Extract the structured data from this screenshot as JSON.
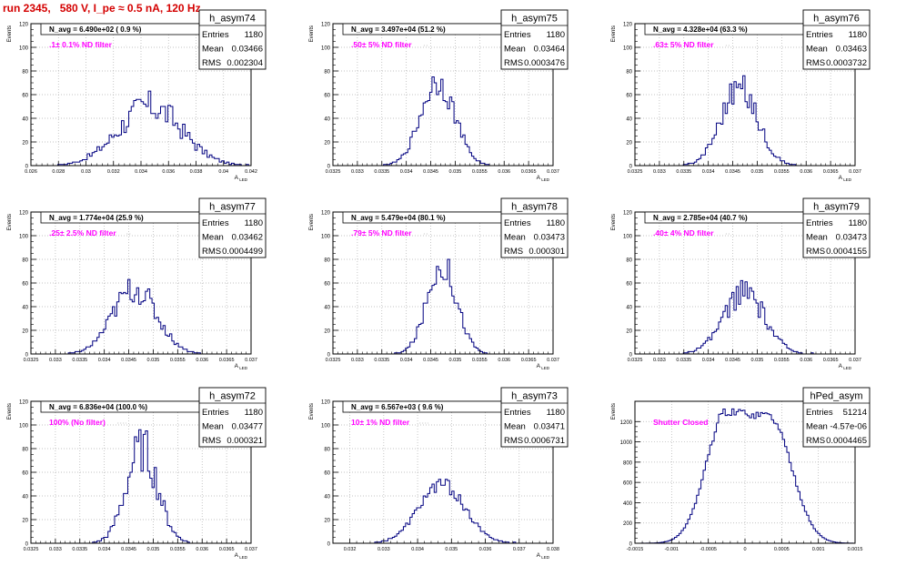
{
  "header": {
    "title": "run 2345,   580 V, I_pe ≈ 0.5 nA, 120 Hz"
  },
  "colors": {
    "title": "#d40000",
    "histogram": "#000080",
    "annotation": "#ff00ff",
    "grid": "#b0b0b0"
  },
  "chart_data": [
    {
      "type": "histogram",
      "name": "h_asym74",
      "navg": "N_avg = 6.490e+02 ( 0.9 %)",
      "annotation": ".1± 0.1% ND filter",
      "stats": {
        "entries": "1180",
        "mean": "0.03466",
        "rms": "0.002304"
      },
      "xlim": [
        0.026,
        0.042
      ],
      "ylim": [
        0,
        120
      ],
      "xticks": [
        "0.026",
        "0.028",
        "0.03",
        "0.032",
        "0.034",
        "0.036",
        "0.038",
        "0.04",
        "0.042"
      ],
      "yticks": [
        "0",
        "20",
        "40",
        "60",
        "80",
        "100",
        "120"
      ],
      "ylabel": "Events",
      "xlabel": "A",
      "peak": 50,
      "mean_value": 0.03466,
      "sigma": 0.0023,
      "nbins": 90,
      "noise": 0.28
    },
    {
      "type": "histogram",
      "name": "h_asym75",
      "navg": "N_avg = 3.497e+04 (51.2 %)",
      "annotation": ".50± 5% ND filter",
      "stats": {
        "entries": "1180",
        "mean": "0.03464",
        "rms": "0.0003476"
      },
      "xlim": [
        0.0325,
        0.037
      ],
      "ylim": [
        0,
        120
      ],
      "xticks": [
        "0.0325",
        "0.033",
        "0.0335",
        "0.034",
        "0.0345",
        "0.035",
        "0.0355",
        "0.036",
        "0.0365",
        "0.037"
      ],
      "yticks": [
        "0",
        "20",
        "40",
        "60",
        "80",
        "100",
        "120"
      ],
      "ylabel": "Events",
      "xlabel": "A",
      "peak": 72,
      "mean_value": 0.03464,
      "sigma": 0.000348,
      "nbins": 100,
      "noise": 0.18
    },
    {
      "type": "histogram",
      "name": "h_asym76",
      "navg": "N_avg = 4.328e+04 (63.3 %)",
      "annotation": ".63± 5% ND filter",
      "stats": {
        "entries": "1180",
        "mean": "0.03463",
        "rms": "0.0003732"
      },
      "xlim": [
        0.0325,
        0.037
      ],
      "ylim": [
        0,
        120
      ],
      "xticks": [
        "0.0325",
        "0.033",
        "0.0335",
        "0.034",
        "0.0345",
        "0.035",
        "0.0355",
        "0.036",
        "0.0365",
        "0.037"
      ],
      "yticks": [
        "0",
        "20",
        "40",
        "60",
        "80",
        "100",
        "120"
      ],
      "ylabel": "Events",
      "xlabel": "A",
      "peak": 66,
      "mean_value": 0.03463,
      "sigma": 0.000373,
      "nbins": 100,
      "noise": 0.2
    },
    {
      "type": "histogram",
      "name": "h_asym77",
      "navg": "N_avg = 1.774e+04 (25.9 %)",
      "annotation": ".25± 2.5% ND filter",
      "stats": {
        "entries": "1180",
        "mean": "0.03462",
        "rms": "0.0004499"
      },
      "xlim": [
        0.0325,
        0.037
      ],
      "ylim": [
        0,
        120
      ],
      "xticks": [
        "0.0325",
        "0.033",
        "0.0335",
        "0.034",
        "0.0345",
        "0.035",
        "0.0355",
        "0.036",
        "0.0365",
        "0.037"
      ],
      "yticks": [
        "0",
        "20",
        "40",
        "60",
        "80",
        "100",
        "120"
      ],
      "ylabel": "Events",
      "xlabel": "A",
      "peak": 55,
      "mean_value": 0.03462,
      "sigma": 0.00045,
      "nbins": 100,
      "noise": 0.22
    },
    {
      "type": "histogram",
      "name": "h_asym78",
      "navg": "N_avg = 5.479e+04 (80.1 %)",
      "annotation": ".79± 5% ND filter",
      "stats": {
        "entries": "1180",
        "mean": "0.03473",
        "rms": "0.000301"
      },
      "xlim": [
        0.0325,
        0.037
      ],
      "ylim": [
        0,
        120
      ],
      "xticks": [
        "0.0325",
        "0.033",
        "0.0335",
        "0.034",
        "0.0345",
        "0.035",
        "0.0355",
        "0.036",
        "0.0365",
        "0.037"
      ],
      "yticks": [
        "0",
        "20",
        "40",
        "60",
        "80",
        "100",
        "120"
      ],
      "ylabel": "Events",
      "xlabel": "A",
      "peak": 76,
      "mean_value": 0.03473,
      "sigma": 0.000301,
      "nbins": 100,
      "noise": 0.18
    },
    {
      "type": "histogram",
      "name": "h_asym79",
      "navg": "N_avg = 2.785e+04 (40.7 %)",
      "annotation": ".40± 4% ND filter",
      "stats": {
        "entries": "1180",
        "mean": "0.03473",
        "rms": "0.0004155"
      },
      "xlim": [
        0.0325,
        0.037
      ],
      "ylim": [
        0,
        120
      ],
      "xticks": [
        "0.0325",
        "0.033",
        "0.0335",
        "0.034",
        "0.0345",
        "0.035",
        "0.0355",
        "0.036",
        "0.0365",
        "0.037"
      ],
      "yticks": [
        "0",
        "20",
        "40",
        "60",
        "80",
        "100",
        "120"
      ],
      "ylabel": "Events",
      "xlabel": "A",
      "peak": 52,
      "mean_value": 0.03473,
      "sigma": 0.000416,
      "nbins": 100,
      "noise": 0.22
    },
    {
      "type": "histogram",
      "name": "h_asym72",
      "navg": "N_avg = 6.836e+04 (100.0 %)",
      "annotation": "100% (No filter)",
      "stats": {
        "entries": "1180",
        "mean": "0.03477",
        "rms": "0.000321"
      },
      "xlim": [
        0.0325,
        0.037
      ],
      "ylim": [
        0,
        120
      ],
      "xticks": [
        "0.0325",
        "0.033",
        "0.0335",
        "0.034",
        "0.0345",
        "0.035",
        "0.0355",
        "0.036",
        "0.0365",
        "0.037"
      ],
      "yticks": [
        "0",
        "20",
        "40",
        "60",
        "80",
        "100",
        "120"
      ],
      "ylabel": "Events",
      "xlabel": "A",
      "peak": 80,
      "mean_value": 0.03477,
      "sigma": 0.000321,
      "nbins": 100,
      "noise": 0.25
    },
    {
      "type": "histogram",
      "name": "h_asym73",
      "navg": "N_avg = 6.567e+03 ( 9.6 %)",
      "annotation": "10± 1% ND filter",
      "stats": {
        "entries": "1180",
        "mean": "0.03471",
        "rms": "0.0006731"
      },
      "xlim": [
        0.0315,
        0.038
      ],
      "ylim": [
        0,
        120
      ],
      "xticks": [
        "0.032",
        "0.033",
        "0.034",
        "0.035",
        "0.036",
        "0.037",
        "0.038"
      ],
      "yticks": [
        "0",
        "20",
        "40",
        "60",
        "80",
        "100",
        "120"
      ],
      "ylabel": "Events",
      "xlabel": "A",
      "peak": 50,
      "mean_value": 0.03471,
      "sigma": 0.000673,
      "nbins": 100,
      "noise": 0.12
    },
    {
      "type": "histogram",
      "name": "hPed_asym",
      "navg": "",
      "annotation": "Shutter Closed",
      "stats": {
        "entries": "51214",
        "mean": "-4.57e-06",
        "rms": "0.0004465"
      },
      "xlim": [
        -0.0015,
        0.0015
      ],
      "ylim": [
        0,
        1400
      ],
      "xticks": [
        "-0.0015",
        "-0.001",
        "-0.0005",
        "0",
        "0.0005",
        "0.001",
        "0.0015"
      ],
      "yticks": [
        "0",
        "200",
        "400",
        "600",
        "800",
        "1000",
        "1200"
      ],
      "ylabel": "Events",
      "xlabel": "",
      "bimodal": true,
      "peaks": [
        {
          "x": -0.00025,
          "h": 1270,
          "s": 0.00028
        },
        {
          "x": 0.00038,
          "h": 1130,
          "s": 0.00028
        }
      ],
      "nbins": 100,
      "noise": 0.03
    }
  ]
}
